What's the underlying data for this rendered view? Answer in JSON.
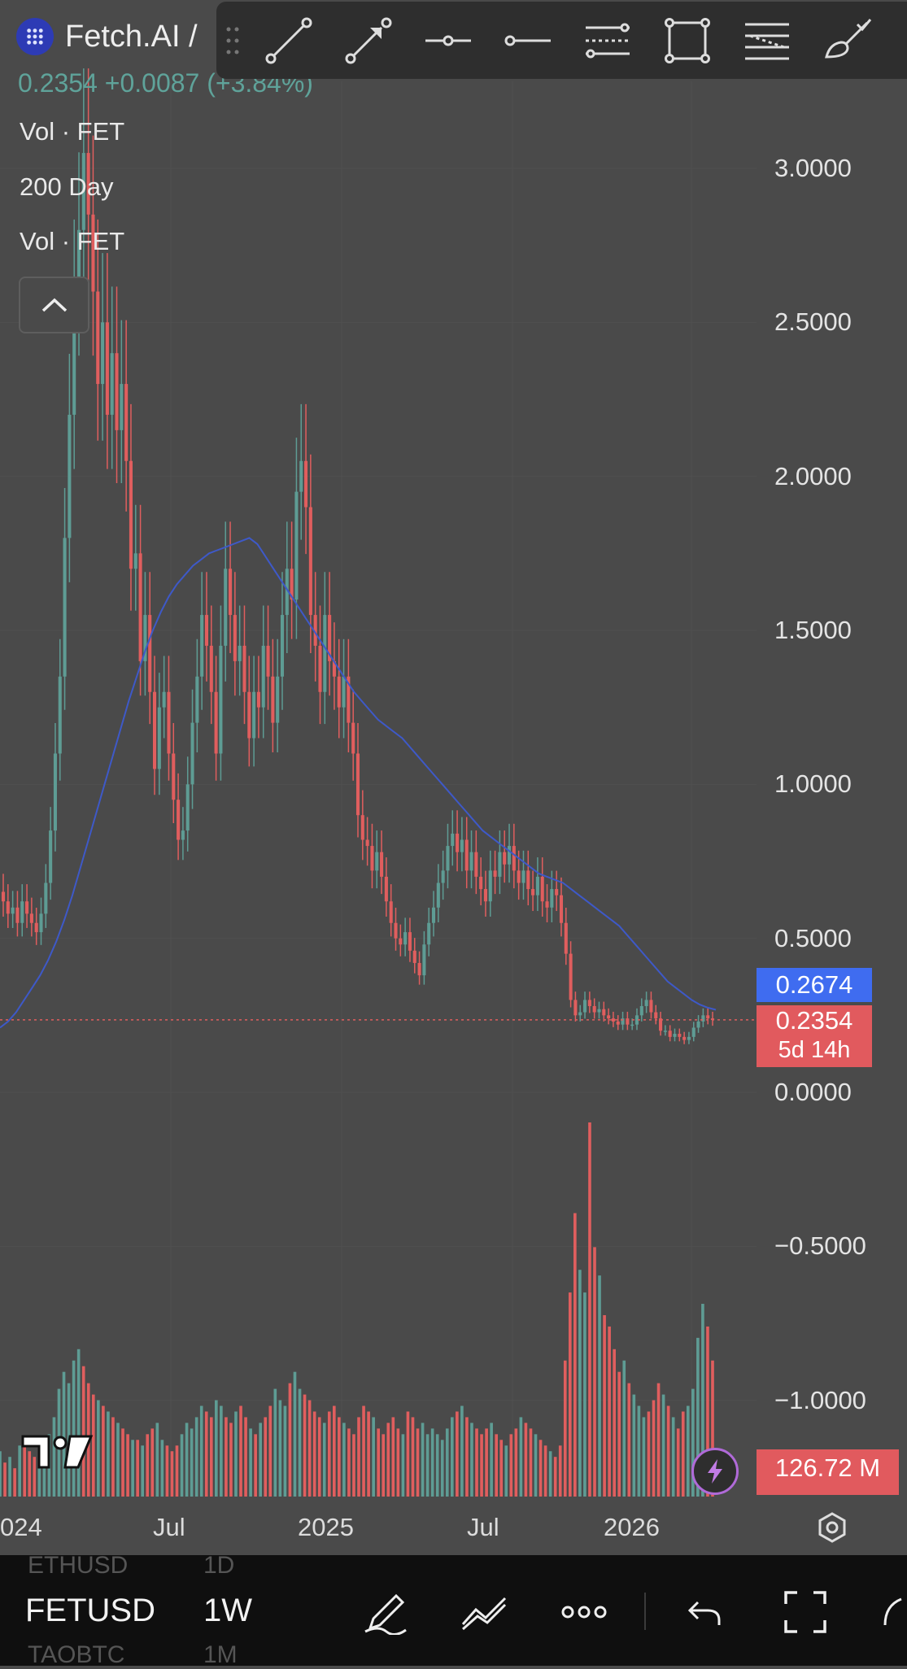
{
  "header": {
    "symbol_name": "Fetch.AI /",
    "price": "0.2354",
    "change": "+0.0087 (+3.84%)",
    "logo_icon": "fetch-ai-logo"
  },
  "legend": {
    "items": [
      "Vol · FET",
      "200 Day",
      "Vol · FET"
    ]
  },
  "toolbar": {
    "tools": [
      "trend-line-icon",
      "arrow-line-icon",
      "horizontal-ray-icon",
      "horizontal-line-icon",
      "parallel-channel-icon",
      "rectangle-icon",
      "fib-retracement-icon",
      "brush-icon"
    ]
  },
  "price_axis": {
    "labels": [
      "3.0000",
      "2.5000",
      "2.0000",
      "1.5000",
      "1.0000",
      "0.5000",
      "0.0000",
      "−0.5000",
      "−1.0000"
    ],
    "ma_tag": "0.2674",
    "price_tag": "0.2354",
    "countdown": "5d 14h",
    "volume_tag": "126.72 M"
  },
  "time_axis": {
    "labels": [
      "024",
      "Jul",
      "2025",
      "Jul",
      "2026"
    ]
  },
  "colors": {
    "up": "#5e9c94",
    "down": "#e05e5e",
    "ma": "#3e59c8",
    "background": "#4a4a4a",
    "ma_tag_bg": "#3f6cf0",
    "price_tag_bg": "#e15a5e"
  },
  "chart_data": {
    "type": "candlestick",
    "interval": "1W",
    "close_series": [
      0.62,
      0.58,
      0.6,
      0.55,
      0.62,
      0.58,
      0.55,
      0.52,
      0.58,
      0.68,
      0.85,
      1.1,
      1.35,
      1.8,
      2.2,
      2.6,
      2.8,
      3.05,
      2.85,
      2.6,
      2.3,
      2.5,
      2.2,
      2.4,
      2.15,
      2.3,
      2.05,
      1.7,
      1.75,
      1.4,
      1.55,
      1.3,
      1.05,
      1.25,
      1.3,
      1.1,
      0.95,
      0.82,
      0.85,
      1.0,
      1.2,
      1.35,
      1.55,
      1.45,
      1.3,
      1.1,
      1.45,
      1.7,
      1.55,
      1.4,
      1.45,
      1.3,
      1.15,
      1.3,
      1.25,
      1.45,
      1.35,
      1.2,
      1.35,
      1.55,
      1.7,
      1.6,
      1.95,
      2.05,
      1.9,
      1.55,
      1.45,
      1.3,
      1.55,
      1.4,
      1.35,
      1.25,
      1.35,
      1.2,
      1.1,
      0.9,
      0.82,
      0.8,
      0.72,
      0.78,
      0.7,
      0.62,
      0.55,
      0.5,
      0.48,
      0.52,
      0.46,
      0.42,
      0.38,
      0.48,
      0.55,
      0.6,
      0.68,
      0.72,
      0.8,
      0.84,
      0.78,
      0.82,
      0.72,
      0.78,
      0.7,
      0.66,
      0.62,
      0.72,
      0.7,
      0.78,
      0.74,
      0.8,
      0.72,
      0.68,
      0.72,
      0.66,
      0.64,
      0.7,
      0.62,
      0.6,
      0.66,
      0.64,
      0.55,
      0.45,
      0.3,
      0.25,
      0.26,
      0.3,
      0.28,
      0.26,
      0.27,
      0.25,
      0.24,
      0.23,
      0.22,
      0.24,
      0.22,
      0.22,
      0.25,
      0.28,
      0.3,
      0.26,
      0.24,
      0.2,
      0.2,
      0.18,
      0.19,
      0.18,
      0.17,
      0.18,
      0.21,
      0.23,
      0.25,
      0.24,
      0.235
    ],
    "ma200_series": [
      0.21,
      0.23,
      0.26,
      0.3,
      0.34,
      0.38,
      0.43,
      0.49,
      0.56,
      0.64,
      0.73,
      0.82,
      0.91,
      1.0,
      1.09,
      1.18,
      1.27,
      1.35,
      1.43,
      1.5,
      1.56,
      1.61,
      1.65,
      1.68,
      1.71,
      1.73,
      1.75,
      1.76,
      1.77,
      1.78,
      1.79,
      1.8,
      1.78,
      1.74,
      1.7,
      1.66,
      1.62,
      1.58,
      1.54,
      1.5,
      1.46,
      1.42,
      1.38,
      1.34,
      1.3,
      1.27,
      1.24,
      1.21,
      1.19,
      1.17,
      1.15,
      1.12,
      1.09,
      1.06,
      1.03,
      1.0,
      0.97,
      0.94,
      0.91,
      0.88,
      0.85,
      0.83,
      0.81,
      0.79,
      0.77,
      0.75,
      0.73,
      0.71,
      0.7,
      0.69,
      0.68,
      0.66,
      0.64,
      0.62,
      0.6,
      0.58,
      0.56,
      0.54,
      0.51,
      0.48,
      0.45,
      0.42,
      0.39,
      0.36,
      0.34,
      0.32,
      0.3,
      0.285,
      0.275,
      0.268
    ],
    "volume_series_millions": [
      40,
      30,
      35,
      25,
      45,
      50,
      40,
      35,
      30,
      45,
      55,
      70,
      95,
      110,
      100,
      120,
      130,
      115,
      100,
      90,
      85,
      80,
      75,
      70,
      65,
      60,
      55,
      50,
      50,
      45,
      55,
      60,
      65,
      50,
      45,
      40,
      45,
      55,
      65,
      60,
      70,
      80,
      75,
      70,
      85,
      80,
      70,
      65,
      75,
      80,
      70,
      60,
      55,
      65,
      70,
      80,
      95,
      85,
      80,
      100,
      110,
      95,
      90,
      85,
      75,
      70,
      65,
      75,
      80,
      70,
      65,
      60,
      55,
      70,
      80,
      75,
      70,
      60,
      55,
      65,
      70,
      60,
      55,
      75,
      70,
      60,
      65,
      55,
      60,
      55,
      50,
      60,
      70,
      75,
      80,
      70,
      65,
      60,
      55,
      60,
      65,
      55,
      50,
      45,
      55,
      60,
      70,
      65,
      60,
      55,
      50,
      45,
      40,
      35,
      45,
      120,
      180,
      250,
      200,
      180,
      330,
      220,
      195,
      160,
      150,
      130,
      110,
      120,
      100,
      90,
      80,
      70,
      75,
      85,
      100,
      90,
      80,
      70,
      60,
      75,
      80,
      95,
      140,
      170,
      150,
      120
    ],
    "ylim": [
      -1.0,
      3.0
    ],
    "x_labels": [
      "024",
      "Jul",
      "2025",
      "Jul",
      "2026"
    ],
    "y_labels": [
      "3.0000",
      "2.5000",
      "2.0000",
      "1.5000",
      "1.0000",
      "0.5000",
      "0.0000",
      "−0.5000",
      "−1.0000"
    ],
    "last_price": 0.2354,
    "ma_last": 0.2674
  },
  "bottom_bar": {
    "symbol": "FETUSD",
    "interval": "1W",
    "ghost_above": [
      "ETHUSD",
      "1D"
    ],
    "ghost_below": [
      "TAOBTC",
      "1M"
    ],
    "icons": [
      "drawing-pen-icon",
      "indicator-icon",
      "more-icon",
      "undo-icon",
      "fullscreen-icon"
    ]
  }
}
